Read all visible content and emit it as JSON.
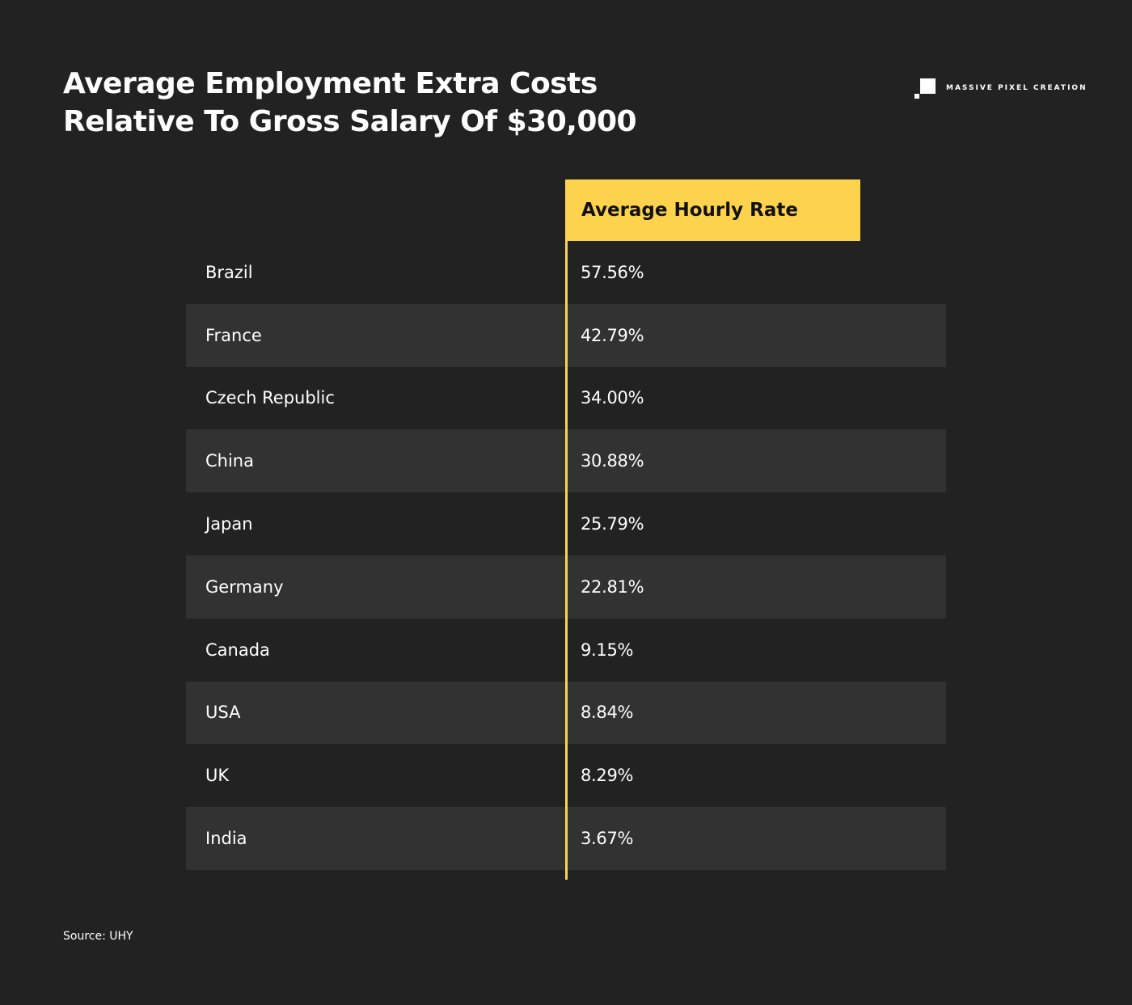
{
  "title_line1": "Average Employment Extra Costs",
  "title_line2": "Relative To Gross Salary Of $30,000",
  "brand": {
    "name": "MASSIVE PIXEL CREATION",
    "icon": "pixel-logo-icon"
  },
  "colors": {
    "background": "#222222",
    "stripe": "#323232",
    "accent": "#fdd34d",
    "text": "#ffffff"
  },
  "source": "Source: UHY",
  "chart_data": {
    "type": "table",
    "columns": [
      "",
      "Average Hourly Rate"
    ],
    "rows": [
      {
        "country": "Brazil",
        "value": "57.56%"
      },
      {
        "country": "France",
        "value": "42.79%"
      },
      {
        "country": "Czech Republic",
        "value": "34.00%"
      },
      {
        "country": "China",
        "value": "30.88%"
      },
      {
        "country": "Japan",
        "value": "25.79%"
      },
      {
        "country": "Germany",
        "value": "22.81%"
      },
      {
        "country": "Canada",
        "value": "9.15%"
      },
      {
        "country": "USA",
        "value": "8.84%"
      },
      {
        "country": "UK",
        "value": "8.29%"
      },
      {
        "country": "India",
        "value": "3.67%"
      }
    ]
  }
}
